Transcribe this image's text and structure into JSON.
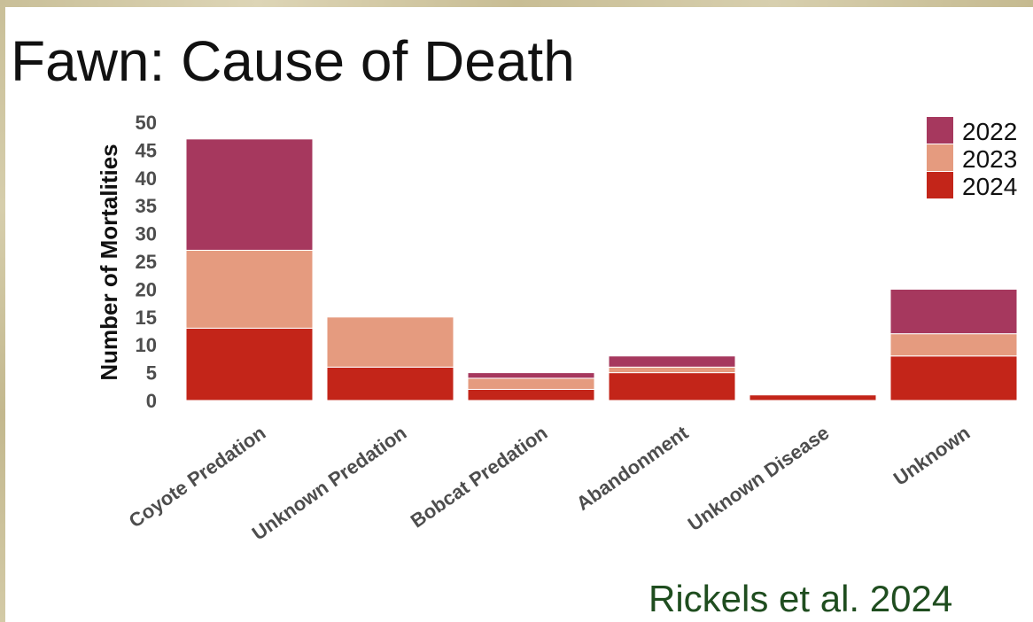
{
  "title": "Fawn: Cause of Death",
  "citation": "Rickels et al. 2024",
  "chart_data": {
    "type": "bar",
    "stacked": true,
    "title": "",
    "xlabel": "",
    "ylabel": "Number of Mortalities",
    "ylim": [
      0,
      50
    ],
    "yticks": [
      0,
      5,
      10,
      15,
      20,
      25,
      30,
      35,
      40,
      45,
      50
    ],
    "categories": [
      "Coyote Predation",
      "Unknown Predation",
      "Bobcat Predation",
      "Abandonment",
      "Unknown Disease",
      "Unknown"
    ],
    "series": [
      {
        "name": "2024",
        "color": "#c32519",
        "values": [
          13,
          6,
          2,
          5,
          1,
          8
        ]
      },
      {
        "name": "2023",
        "color": "#e59b7f",
        "values": [
          14,
          9,
          2,
          1,
          0,
          4
        ]
      },
      {
        "name": "2022",
        "color": "#a6385e",
        "values": [
          20,
          0,
          1,
          2,
          0,
          8
        ]
      }
    ],
    "legend": {
      "position": "top-right",
      "order": [
        "2022",
        "2023",
        "2024"
      ]
    },
    "grid": false
  }
}
